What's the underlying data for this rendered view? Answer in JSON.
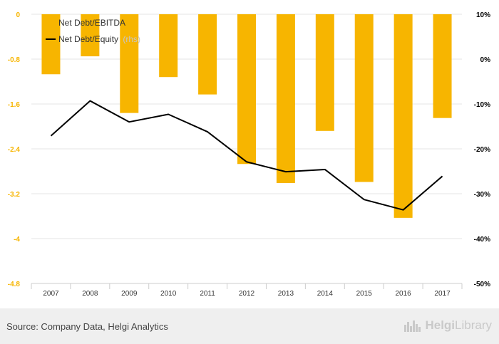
{
  "chart_data": {
    "type": "bar",
    "categories": [
      "2007",
      "2008",
      "2009",
      "2010",
      "2011",
      "2012",
      "2013",
      "2014",
      "2015",
      "2016",
      "2017"
    ],
    "series": [
      {
        "name": "Net Debt/EBITDA",
        "type": "bar",
        "axis": "left",
        "color": "#f7b500",
        "values": [
          -1.07,
          -0.75,
          -1.76,
          -1.12,
          -1.43,
          -2.67,
          -3.01,
          -2.08,
          -2.99,
          -3.63,
          -1.85
        ]
      },
      {
        "name": "Net Debt/Equity",
        "type": "line",
        "axis": "right",
        "color": "#000000",
        "values": [
          -17.1,
          -9.3,
          -14.0,
          -12.3,
          -16.2,
          -22.9,
          -25.1,
          -24.6,
          -31.3,
          -33.6,
          -26.1
        ]
      }
    ],
    "legend_suffix": "(rhs)",
    "y_left": {
      "ylim": [
        -4.8,
        0
      ],
      "ticks": [
        "0",
        "-0.8",
        "-1.6",
        "-2.4",
        "-3.2",
        "-4",
        "-4.8"
      ]
    },
    "y_right": {
      "ylim": [
        -50,
        10
      ],
      "ticks": [
        "10%",
        "0%",
        "-10%",
        "-20%",
        "-30%",
        "-40%",
        "-50%"
      ]
    },
    "grid": true,
    "legend_position": "top-left"
  },
  "footer": {
    "source": "Source: Company Data, Helgi Analytics",
    "brand_prefix": "Helgi",
    "brand_suffix": "Library"
  },
  "colors": {
    "left_axis_text": "#f7b500",
    "right_axis_text": "#000000",
    "grid": "#e6e6e6"
  },
  "icons": {
    "brand": "city-skyline-icon"
  }
}
